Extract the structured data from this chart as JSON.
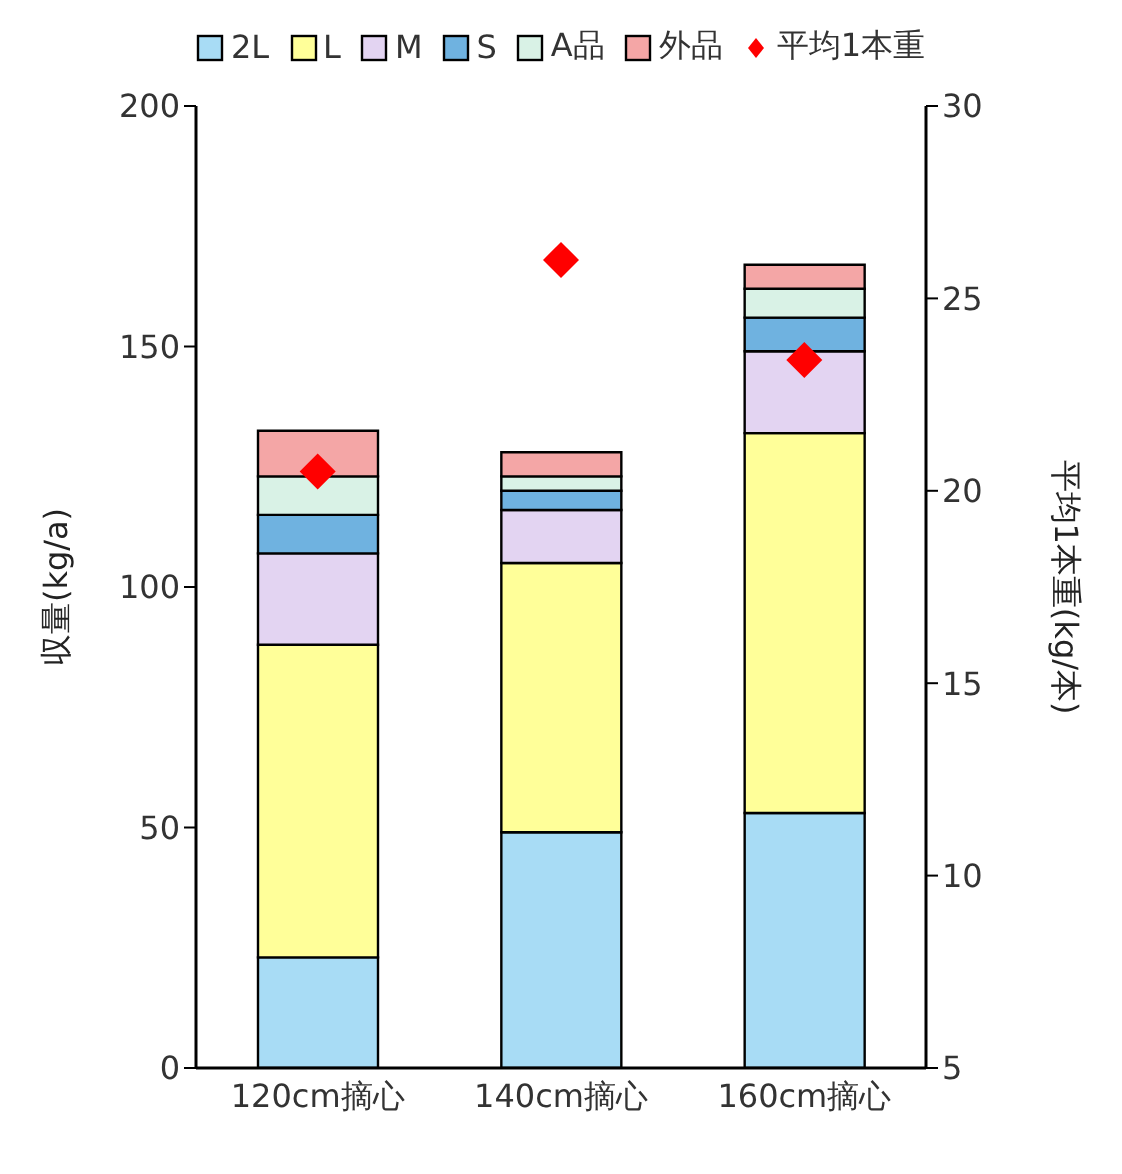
{
  "chart_data": {
    "type": "bar",
    "stacked": true,
    "categories": [
      "120cm摘心",
      "140cm摘心",
      "160cm摘心"
    ],
    "ylabel": "収量(kg/a)",
    "y2label": "平均1本重(kg/本)",
    "ylim": [
      0,
      200
    ],
    "yticks": [
      0,
      50,
      100,
      150,
      200
    ],
    "y2lim": [
      5,
      30
    ],
    "y2ticks": [
      5,
      10,
      15,
      20,
      25,
      30
    ],
    "legend": "top",
    "series": [
      {
        "name": "2L",
        "color": "#a8dcf5",
        "values": [
          23,
          49,
          53
        ]
      },
      {
        "name": "L",
        "color": "#ffff99",
        "values": [
          65,
          56,
          79
        ]
      },
      {
        "name": "M",
        "color": "#e3d4f2",
        "values": [
          19,
          11,
          17
        ]
      },
      {
        "name": "S",
        "color": "#6fb2e0",
        "values": [
          8,
          4,
          7
        ]
      },
      {
        "name": "A品",
        "color": "#d9f2e6",
        "values": [
          8,
          3,
          6
        ]
      },
      {
        "name": "外品",
        "color": "#f4a6a6",
        "values": [
          9.5,
          5,
          5
        ]
      },
      {
        "name": "平均1本重",
        "type": "scatter",
        "axis": "y2",
        "marker": "diamond",
        "color": "#ff0000",
        "x": [
          "120cm摘心",
          "140cm摘心",
          "160cm摘心"
        ],
        "values": [
          20.5,
          26.0,
          23.4
        ]
      }
    ]
  }
}
